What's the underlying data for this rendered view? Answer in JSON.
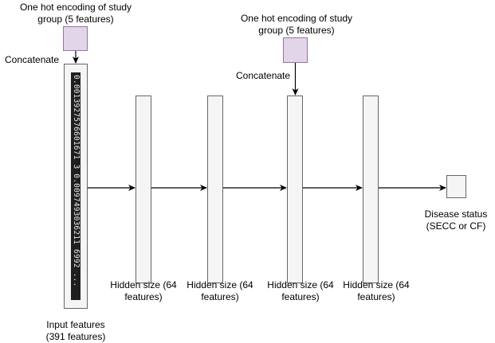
{
  "encoding_blocks": [
    {
      "label": "One hot encoding of study\ngroup (5 features)",
      "concat_label": "Concatenate"
    },
    {
      "label": "One hot encoding of study\ngroup (5 features)",
      "concat_label": "Concatenate"
    }
  ],
  "input": {
    "vector_text": "0.0013927576601671 3  0.0097493036211 6992  ...",
    "label": "Input features\n(391 features)"
  },
  "hidden_layers": [
    {
      "label": "Hidden size (64\nfeatures)"
    },
    {
      "label": "Hidden size (64\nfeatures)"
    },
    {
      "label": "Hidden size (64\nfeatures)"
    },
    {
      "label": "Hidden size (64\nfeatures)"
    }
  ],
  "output": {
    "label": "Disease status\n(SECC or CF)"
  },
  "colors": {
    "encoding_fill": "#e1d5e7",
    "encoding_stroke": "#9673a6",
    "layer_fill": "#f5f5f5",
    "layer_stroke": "#666666",
    "edge": "#000000"
  }
}
